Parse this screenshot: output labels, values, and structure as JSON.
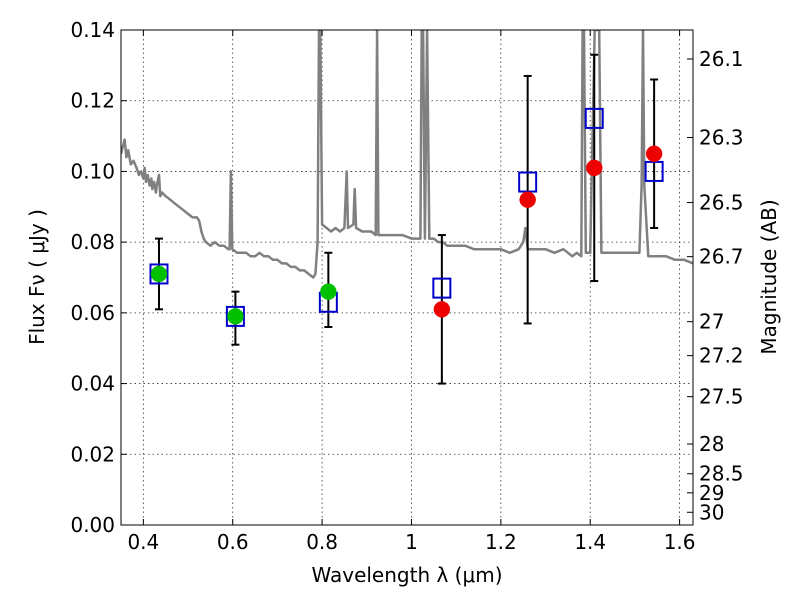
{
  "chart_data": {
    "type": "scatter",
    "xlabel": "Wavelength  λ (μm)",
    "ylabel": "Flux  Fν  ( μJy )",
    "y2label": "Magnitude (AB)",
    "xlim": [
      0.35,
      1.63
    ],
    "ylim": [
      0.0,
      0.14
    ],
    "x_ticks": [
      0.4,
      0.6,
      0.8,
      1.0,
      1.2,
      1.4,
      1.6
    ],
    "x_tick_labels": [
      "0.4",
      "0.6",
      "0.8",
      "1",
      "1.2",
      "1.4",
      "1.6"
    ],
    "y_ticks": [
      0.0,
      0.02,
      0.04,
      0.06,
      0.08,
      0.1,
      0.12,
      0.14
    ],
    "y_tick_labels": [
      "0.00",
      "0.02",
      "0.04",
      "0.06",
      "0.08",
      "0.10",
      "0.12",
      "0.14"
    ],
    "mag_ticks": [
      {
        "label": "26.1",
        "flux": 0.1318
      },
      {
        "label": "26.3",
        "flux": 0.1096
      },
      {
        "label": "26.5",
        "flux": 0.0912
      },
      {
        "label": "26.7",
        "flux": 0.0759
      },
      {
        "label": "27",
        "flux": 0.0575
      },
      {
        "label": "27.2",
        "flux": 0.0479
      },
      {
        "label": "27.5",
        "flux": 0.0363
      },
      {
        "label": "28",
        "flux": 0.0229
      },
      {
        "label": "28.5",
        "flux": 0.0145
      },
      {
        "label": "29",
        "flux": 0.0091
      },
      {
        "label": "30",
        "flux": 0.0036
      }
    ],
    "grid": true,
    "series": [
      {
        "kind": "errorbar",
        "color": "#000000",
        "points": [
          {
            "x": 0.435,
            "y": 0.071,
            "low": 0.061,
            "high": 0.081
          },
          {
            "x": 0.606,
            "y": 0.059,
            "low": 0.051,
            "high": 0.066
          },
          {
            "x": 0.814,
            "y": 0.066,
            "low": 0.056,
            "high": 0.077
          },
          {
            "x": 1.068,
            "y": 0.061,
            "low": 0.04,
            "high": 0.082
          },
          {
            "x": 1.26,
            "y": 0.092,
            "low": 0.057,
            "high": 0.127
          },
          {
            "x": 1.409,
            "y": 0.101,
            "low": 0.069,
            "high": 0.133
          },
          {
            "x": 1.543,
            "y": 0.105,
            "low": 0.084,
            "high": 0.126
          }
        ]
      },
      {
        "kind": "open-square",
        "color": "#0000cc",
        "points": [
          {
            "x": 0.435,
            "y": 0.071
          },
          {
            "x": 0.606,
            "y": 0.059
          },
          {
            "x": 0.814,
            "y": 0.063
          },
          {
            "x": 1.068,
            "y": 0.067
          },
          {
            "x": 1.26,
            "y": 0.097
          },
          {
            "x": 1.409,
            "y": 0.115
          },
          {
            "x": 1.543,
            "y": 0.1
          }
        ]
      },
      {
        "kind": "filled-circle",
        "color": "#00c000",
        "points": [
          {
            "x": 0.435,
            "y": 0.071
          },
          {
            "x": 0.606,
            "y": 0.059
          },
          {
            "x": 0.814,
            "y": 0.066
          }
        ]
      },
      {
        "kind": "filled-circle",
        "color": "#ee0000",
        "points": [
          {
            "x": 1.068,
            "y": 0.061
          },
          {
            "x": 1.26,
            "y": 0.092
          },
          {
            "x": 1.409,
            "y": 0.101
          },
          {
            "x": 1.543,
            "y": 0.105
          }
        ]
      },
      {
        "kind": "spectrum-line",
        "color": "#808080",
        "points": [
          [
            0.35,
            0.105
          ],
          [
            0.358,
            0.109
          ],
          [
            0.362,
            0.104
          ],
          [
            0.366,
            0.106
          ],
          [
            0.372,
            0.102
          ],
          [
            0.378,
            0.103
          ],
          [
            0.385,
            0.101
          ],
          [
            0.39,
            0.099
          ],
          [
            0.395,
            0.1
          ],
          [
            0.4,
            0.098
          ],
          [
            0.403,
            0.101
          ],
          [
            0.406,
            0.097
          ],
          [
            0.41,
            0.099
          ],
          [
            0.414,
            0.096
          ],
          [
            0.418,
            0.098
          ],
          [
            0.42,
            0.095
          ],
          [
            0.424,
            0.097
          ],
          [
            0.428,
            0.094
          ],
          [
            0.43,
            0.096
          ],
          [
            0.435,
            0.099
          ],
          [
            0.438,
            0.093
          ],
          [
            0.442,
            0.094
          ],
          [
            0.45,
            0.093
          ],
          [
            0.46,
            0.092
          ],
          [
            0.47,
            0.091
          ],
          [
            0.48,
            0.09
          ],
          [
            0.49,
            0.089
          ],
          [
            0.5,
            0.088
          ],
          [
            0.51,
            0.087
          ],
          [
            0.52,
            0.087
          ],
          [
            0.525,
            0.086
          ],
          [
            0.53,
            0.083
          ],
          [
            0.535,
            0.081
          ],
          [
            0.54,
            0.08
          ],
          [
            0.55,
            0.079
          ],
          [
            0.56,
            0.08
          ],
          [
            0.57,
            0.079
          ],
          [
            0.58,
            0.079
          ],
          [
            0.59,
            0.078
          ],
          [
            0.593,
            0.078
          ],
          [
            0.596,
            0.1
          ],
          [
            0.599,
            0.078
          ],
          [
            0.61,
            0.077
          ],
          [
            0.62,
            0.077
          ],
          [
            0.63,
            0.077
          ],
          [
            0.64,
            0.076
          ],
          [
            0.65,
            0.076
          ],
          [
            0.66,
            0.077
          ],
          [
            0.67,
            0.076
          ],
          [
            0.68,
            0.076
          ],
          [
            0.69,
            0.075
          ],
          [
            0.7,
            0.075
          ],
          [
            0.71,
            0.074
          ],
          [
            0.72,
            0.074
          ],
          [
            0.73,
            0.073
          ],
          [
            0.74,
            0.073
          ],
          [
            0.75,
            0.072
          ],
          [
            0.76,
            0.072
          ],
          [
            0.77,
            0.071
          ],
          [
            0.78,
            0.07
          ],
          [
            0.785,
            0.071
          ],
          [
            0.79,
            0.08
          ],
          [
            0.793,
            0.14
          ],
          [
            0.796,
            0.14
          ],
          [
            0.8,
            0.085
          ],
          [
            0.81,
            0.084
          ],
          [
            0.82,
            0.083
          ],
          [
            0.83,
            0.084
          ],
          [
            0.84,
            0.083
          ],
          [
            0.85,
            0.084
          ],
          [
            0.855,
            0.1
          ],
          [
            0.858,
            0.084
          ],
          [
            0.87,
            0.085
          ],
          [
            0.873,
            0.095
          ],
          [
            0.876,
            0.084
          ],
          [
            0.89,
            0.083
          ],
          [
            0.9,
            0.083
          ],
          [
            0.91,
            0.083
          ],
          [
            0.92,
            0.082
          ],
          [
            0.923,
            0.14
          ],
          [
            0.926,
            0.082
          ],
          [
            0.94,
            0.082
          ],
          [
            0.96,
            0.082
          ],
          [
            0.98,
            0.082
          ],
          [
            1.0,
            0.081
          ],
          [
            1.02,
            0.081
          ],
          [
            1.023,
            0.14
          ],
          [
            1.026,
            0.14
          ],
          [
            1.03,
            0.081
          ],
          [
            1.035,
            0.14
          ],
          [
            1.04,
            0.081
          ],
          [
            1.05,
            0.081
          ],
          [
            1.06,
            0.08
          ],
          [
            1.07,
            0.08
          ],
          [
            1.08,
            0.079
          ],
          [
            1.1,
            0.079
          ],
          [
            1.12,
            0.079
          ],
          [
            1.14,
            0.078
          ],
          [
            1.16,
            0.078
          ],
          [
            1.18,
            0.078
          ],
          [
            1.2,
            0.078
          ],
          [
            1.22,
            0.077
          ],
          [
            1.24,
            0.078
          ],
          [
            1.25,
            0.08
          ],
          [
            1.255,
            0.084
          ],
          [
            1.26,
            0.078
          ],
          [
            1.28,
            0.078
          ],
          [
            1.3,
            0.078
          ],
          [
            1.32,
            0.077
          ],
          [
            1.34,
            0.078
          ],
          [
            1.35,
            0.077
          ],
          [
            1.36,
            0.076
          ],
          [
            1.37,
            0.077
          ],
          [
            1.38,
            0.076
          ],
          [
            1.383,
            0.14
          ],
          [
            1.386,
            0.14
          ],
          [
            1.39,
            0.077
          ],
          [
            1.4,
            0.077
          ],
          [
            1.41,
            0.14
          ],
          [
            1.414,
            0.14
          ],
          [
            1.42,
            0.14
          ],
          [
            1.425,
            0.077
          ],
          [
            1.44,
            0.077
          ],
          [
            1.46,
            0.077
          ],
          [
            1.48,
            0.077
          ],
          [
            1.5,
            0.077
          ],
          [
            1.51,
            0.077
          ],
          [
            1.515,
            0.096
          ],
          [
            1.518,
            0.14
          ],
          [
            1.521,
            0.096
          ],
          [
            1.53,
            0.076
          ],
          [
            1.55,
            0.076
          ],
          [
            1.57,
            0.076
          ],
          [
            1.59,
            0.075
          ],
          [
            1.61,
            0.075
          ],
          [
            1.63,
            0.074
          ]
        ]
      }
    ]
  }
}
